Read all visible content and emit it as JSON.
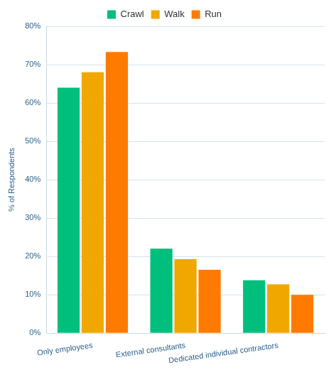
{
  "chart_data": {
    "type": "bar",
    "categories": [
      "Only employees",
      "External consultants",
      "Dedicated individual contractors"
    ],
    "series": [
      {
        "name": "Crawl",
        "color": "#00bf7d",
        "values": [
          64,
          22,
          13.8
        ]
      },
      {
        "name": "Walk",
        "color": "#f0a800",
        "values": [
          68,
          19.3,
          12.7
        ]
      },
      {
        "name": "Run",
        "color": "#ff7a00",
        "values": [
          73.3,
          16.5,
          10
        ]
      }
    ],
    "y_label": "% of Respondents",
    "ylim": [
      0,
      80
    ],
    "yticks": [
      {
        "value": 0,
        "label": "0%"
      },
      {
        "value": 10,
        "label": "10%"
      },
      {
        "value": 20,
        "label": "20%"
      },
      {
        "value": 30,
        "label": "30%"
      },
      {
        "value": 40,
        "label": "40%"
      },
      {
        "value": 50,
        "label": "50%"
      },
      {
        "value": 60,
        "label": "60%"
      },
      {
        "value": 70,
        "label": "70%"
      },
      {
        "value": 80,
        "label": "80%"
      }
    ],
    "grid": true,
    "legend": "top"
  }
}
